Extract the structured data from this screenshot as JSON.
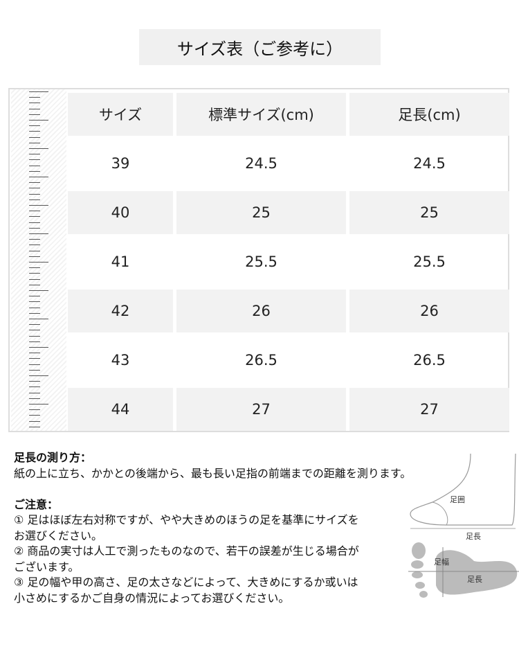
{
  "title": "サイズ表（ご参考に）",
  "table": {
    "headers": [
      "サイズ",
      "標準サイズ(cm)",
      "足長(cm)"
    ],
    "rows": [
      [
        "39",
        "24.5",
        "24.5"
      ],
      [
        "40",
        "25",
        "25"
      ],
      [
        "41",
        "25.5",
        "25.5"
      ],
      [
        "42",
        "26",
        "26"
      ],
      [
        "43",
        "26.5",
        "26.5"
      ],
      [
        "44",
        "27",
        "27"
      ]
    ]
  },
  "notes": {
    "measure_heading": "足長の測り方：",
    "measure_text": "紙の上に立ち、かかとの後端から、最も長い足指の前端までの距離を測ります。",
    "caution_heading": "ご注意：",
    "lines": [
      "① 足はほぼ左右対称ですが、やや大きめのほうの足を基準にサイズを",
      "お選びください。",
      "② 商品の実寸は人工で測ったものなので、若干の誤差が生じる場合が",
      "ございます。",
      "③ 足の幅や甲の高さ、足の太さなどによって、大きめにするか或いは",
      "小さめにするかご自身の情況によってお選びください。"
    ]
  },
  "diagram": {
    "girth": "足囲",
    "length": "足長",
    "width": "足幅"
  }
}
